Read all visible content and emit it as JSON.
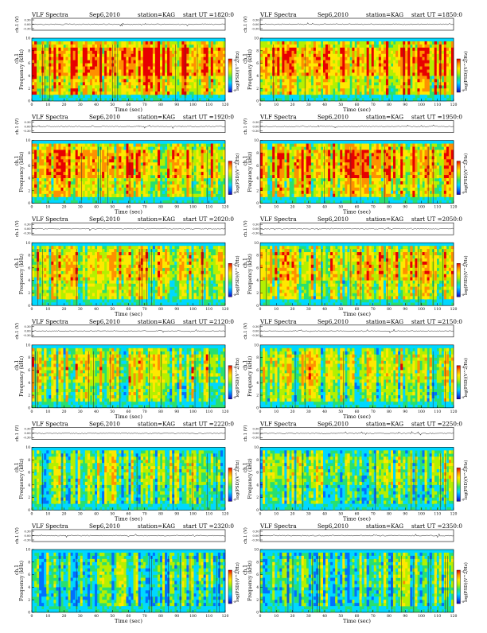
{
  "page": {
    "shared": {
      "program": "VLF Spectra",
      "date": "Sep6,2010",
      "station": "station=KAG",
      "start_prefix": "start  UT =",
      "ch_label": "ch.1 (V)",
      "freq_label": "Frequency (kHz)",
      "time_label": "Time (sec)",
      "cb_label": "log(PSD)(V^2/Hz)"
    },
    "colors": {
      "scale": [
        "#1a00b4",
        "#0070ff",
        "#00d8ff",
        "#28e070",
        "#b4f000",
        "#ffe800",
        "#ff9000",
        "#e80000"
      ],
      "wave": "#000000"
    }
  },
  "chart_data": [
    {
      "type": "heatmap",
      "title": "VLF Spectra",
      "start_ut": "1820:0",
      "wave_yticks": [
        "0.30",
        "0.00",
        "-0.30"
      ],
      "x": {
        "label": "Time (sec)",
        "range": [
          0,
          120
        ],
        "ticks": [
          "0",
          "10",
          "20",
          "30",
          "40",
          "50",
          "60",
          "70",
          "80",
          "90",
          "100",
          "110",
          "120"
        ]
      },
      "y": {
        "label": "Frequency (kHz)",
        "range": [
          0,
          10
        ],
        "ticks": [
          "0",
          "2",
          "4",
          "6",
          "8",
          "10"
        ]
      },
      "colorbar": {
        "label": "log(PSD)(V^2/Hz)",
        "ticks": [
          "-4",
          "-8"
        ]
      }
    },
    {
      "type": "heatmap",
      "title": "VLF Spectra",
      "start_ut": "1850:0",
      "wave_yticks": [
        "0.30",
        "0.00",
        "-0.30"
      ],
      "x": {
        "label": "Time (sec)",
        "range": [
          0,
          120
        ],
        "ticks": [
          "0",
          "10",
          "20",
          "30",
          "40",
          "50",
          "60",
          "70",
          "80",
          "90",
          "100",
          "110",
          "120"
        ]
      },
      "y": {
        "label": "Frequency (kHz)",
        "range": [
          0,
          10
        ],
        "ticks": [
          "0",
          "2",
          "4",
          "6",
          "8",
          "10"
        ]
      },
      "colorbar": {
        "label": "log(PSD)(V^2/Hz)",
        "ticks": [
          "-4",
          "-8"
        ]
      }
    },
    {
      "type": "heatmap",
      "title": "VLF Spectra",
      "start_ut": "1920:0",
      "wave_yticks": [
        "0.30",
        "0.00",
        "-0.30"
      ],
      "x": {
        "label": "Time (sec)",
        "range": [
          0,
          120
        ],
        "ticks": [
          "0",
          "10",
          "20",
          "30",
          "40",
          "50",
          "60",
          "70",
          "80",
          "90",
          "100",
          "110",
          "120"
        ]
      },
      "y": {
        "label": "Frequency (kHz)",
        "range": [
          0,
          10
        ],
        "ticks": [
          "0",
          "2",
          "4",
          "6",
          "8",
          "10"
        ]
      },
      "colorbar": {
        "label": "log(PSD)(V^2/Hz)",
        "ticks": [
          "-4",
          "-8"
        ]
      }
    },
    {
      "type": "heatmap",
      "title": "VLF Spectra",
      "start_ut": "1950:0",
      "wave_yticks": [
        "0.30",
        "0.00",
        "-0.30"
      ],
      "x": {
        "label": "Time (sec)",
        "range": [
          0,
          120
        ],
        "ticks": [
          "0",
          "10",
          "20",
          "30",
          "40",
          "50",
          "60",
          "70",
          "80",
          "90",
          "100",
          "110",
          "120"
        ]
      },
      "y": {
        "label": "Frequency (kHz)",
        "range": [
          0,
          10
        ],
        "ticks": [
          "0",
          "2",
          "4",
          "6",
          "8",
          "10"
        ]
      },
      "colorbar": {
        "label": "log(PSD)(V^2/Hz)",
        "ticks": [
          "-4",
          "-8"
        ]
      }
    },
    {
      "type": "heatmap",
      "title": "VLF Spectra",
      "start_ut": "2020:0",
      "wave_yticks": [
        "0.30",
        "0.00",
        "-0.30"
      ],
      "x": {
        "label": "Time (sec)",
        "range": [
          0,
          120
        ],
        "ticks": [
          "0",
          "10",
          "20",
          "30",
          "40",
          "50",
          "60",
          "70",
          "80",
          "90",
          "100",
          "110",
          "120"
        ]
      },
      "y": {
        "label": "Frequency (kHz)",
        "range": [
          0,
          10
        ],
        "ticks": [
          "0",
          "2",
          "4",
          "6",
          "8",
          "10"
        ]
      },
      "colorbar": {
        "label": "log(PSD)(V^2/Hz)",
        "ticks": [
          "-4",
          "-8"
        ]
      }
    },
    {
      "type": "heatmap",
      "title": "VLF Spectra",
      "start_ut": "2050:0",
      "wave_yticks": [
        "0.30",
        "0.00",
        "-0.30"
      ],
      "x": {
        "label": "Time (sec)",
        "range": [
          0,
          120
        ],
        "ticks": [
          "0",
          "10",
          "20",
          "30",
          "40",
          "50",
          "60",
          "70",
          "80",
          "90",
          "100",
          "110",
          "120"
        ]
      },
      "y": {
        "label": "Frequency (kHz)",
        "range": [
          0,
          10
        ],
        "ticks": [
          "0",
          "2",
          "4",
          "6",
          "8",
          "10"
        ]
      },
      "colorbar": {
        "label": "log(PSD)(V^2/Hz)",
        "ticks": [
          "-4",
          "-8"
        ]
      }
    },
    {
      "type": "heatmap",
      "title": "VLF Spectra",
      "start_ut": "2120:0",
      "wave_yticks": [
        "0.30",
        "0.00",
        "-0.30"
      ],
      "x": {
        "label": "Time (sec)",
        "range": [
          0,
          120
        ],
        "ticks": [
          "0",
          "10",
          "20",
          "30",
          "40",
          "50",
          "60",
          "70",
          "80",
          "90",
          "100",
          "110",
          "120"
        ]
      },
      "y": {
        "label": "Frequency (kHz)",
        "range": [
          0,
          10
        ],
        "ticks": [
          "0",
          "2",
          "4",
          "6",
          "8",
          "10"
        ]
      },
      "colorbar": {
        "label": "log(PSD)(V^2/Hz)",
        "ticks": [
          "-4",
          "-8"
        ]
      }
    },
    {
      "type": "heatmap",
      "title": "VLF Spectra",
      "start_ut": "2150:0",
      "wave_yticks": [
        "0.30",
        "0.00",
        "-0.30"
      ],
      "x": {
        "label": "Time (sec)",
        "range": [
          0,
          120
        ],
        "ticks": [
          "0",
          "10",
          "20",
          "30",
          "40",
          "50",
          "60",
          "70",
          "80",
          "90",
          "100",
          "110",
          "120"
        ]
      },
      "y": {
        "label": "Frequency (kHz)",
        "range": [
          0,
          10
        ],
        "ticks": [
          "0",
          "2",
          "4",
          "6",
          "8",
          "10"
        ]
      },
      "colorbar": {
        "label": "log(PSD)(V^2/Hz)",
        "ticks": [
          "-4",
          "-8"
        ]
      }
    },
    {
      "type": "heatmap",
      "title": "VLF Spectra",
      "start_ut": "2220:0",
      "wave_yticks": [
        "0.30",
        "0.00",
        "-0.30"
      ],
      "x": {
        "label": "Time (sec)",
        "range": [
          0,
          120
        ],
        "ticks": [
          "0",
          "10",
          "20",
          "30",
          "40",
          "50",
          "60",
          "70",
          "80",
          "90",
          "100",
          "110",
          "120"
        ]
      },
      "y": {
        "label": "Frequency (kHz)",
        "range": [
          0,
          10
        ],
        "ticks": [
          "0",
          "2",
          "4",
          "6",
          "8",
          "10"
        ]
      },
      "colorbar": {
        "label": "log(PSD)(V^2/Hz)",
        "ticks": [
          "-4",
          "-8"
        ]
      }
    },
    {
      "type": "heatmap",
      "title": "VLF Spectra",
      "start_ut": "2250:0",
      "wave_yticks": [
        "0.30",
        "0.00",
        "-0.30"
      ],
      "x": {
        "label": "Time (sec)",
        "range": [
          0,
          120
        ],
        "ticks": [
          "0",
          "10",
          "20",
          "30",
          "40",
          "50",
          "60",
          "70",
          "80",
          "90",
          "100",
          "110",
          "120"
        ]
      },
      "y": {
        "label": "Frequency (kHz)",
        "range": [
          0,
          10
        ],
        "ticks": [
          "0",
          "2",
          "4",
          "6",
          "8",
          "10"
        ]
      },
      "colorbar": {
        "label": "log(PSD)(V^2/Hz)",
        "ticks": [
          "-4",
          "-8"
        ]
      }
    },
    {
      "type": "heatmap",
      "title": "VLF Spectra",
      "start_ut": "2320:0",
      "wave_yticks": [
        "0.30",
        "0.00",
        "-0.30"
      ],
      "x": {
        "label": "Time (sec)",
        "range": [
          0,
          120
        ],
        "ticks": [
          "0",
          "10",
          "20",
          "30",
          "40",
          "50",
          "60",
          "70",
          "80",
          "90",
          "100",
          "110",
          "120"
        ]
      },
      "y": {
        "label": "Frequency (kHz)",
        "range": [
          0,
          10
        ],
        "ticks": [
          "0",
          "2",
          "4",
          "6",
          "8",
          "10"
        ]
      },
      "colorbar": {
        "label": "log(PSD)(V^2/Hz)",
        "ticks": [
          "-4",
          "-8"
        ]
      }
    },
    {
      "type": "heatmap",
      "title": "VLF Spectra",
      "start_ut": "2350:0",
      "wave_yticks": [
        "0.30",
        "0.00",
        "-0.30"
      ],
      "x": {
        "label": "Time (sec)",
        "range": [
          0,
          120
        ],
        "ticks": [
          "0",
          "10",
          "20",
          "30",
          "40",
          "50",
          "60",
          "70",
          "80",
          "90",
          "100",
          "110",
          "120"
        ]
      },
      "y": {
        "label": "Frequency (kHz)",
        "range": [
          0,
          10
        ],
        "ticks": [
          "0",
          "2",
          "4",
          "6",
          "8",
          "10"
        ]
      },
      "colorbar": {
        "label": "log(PSD)(V^2/Hz)",
        "ticks": [
          "-4",
          "-8"
        ]
      }
    }
  ]
}
